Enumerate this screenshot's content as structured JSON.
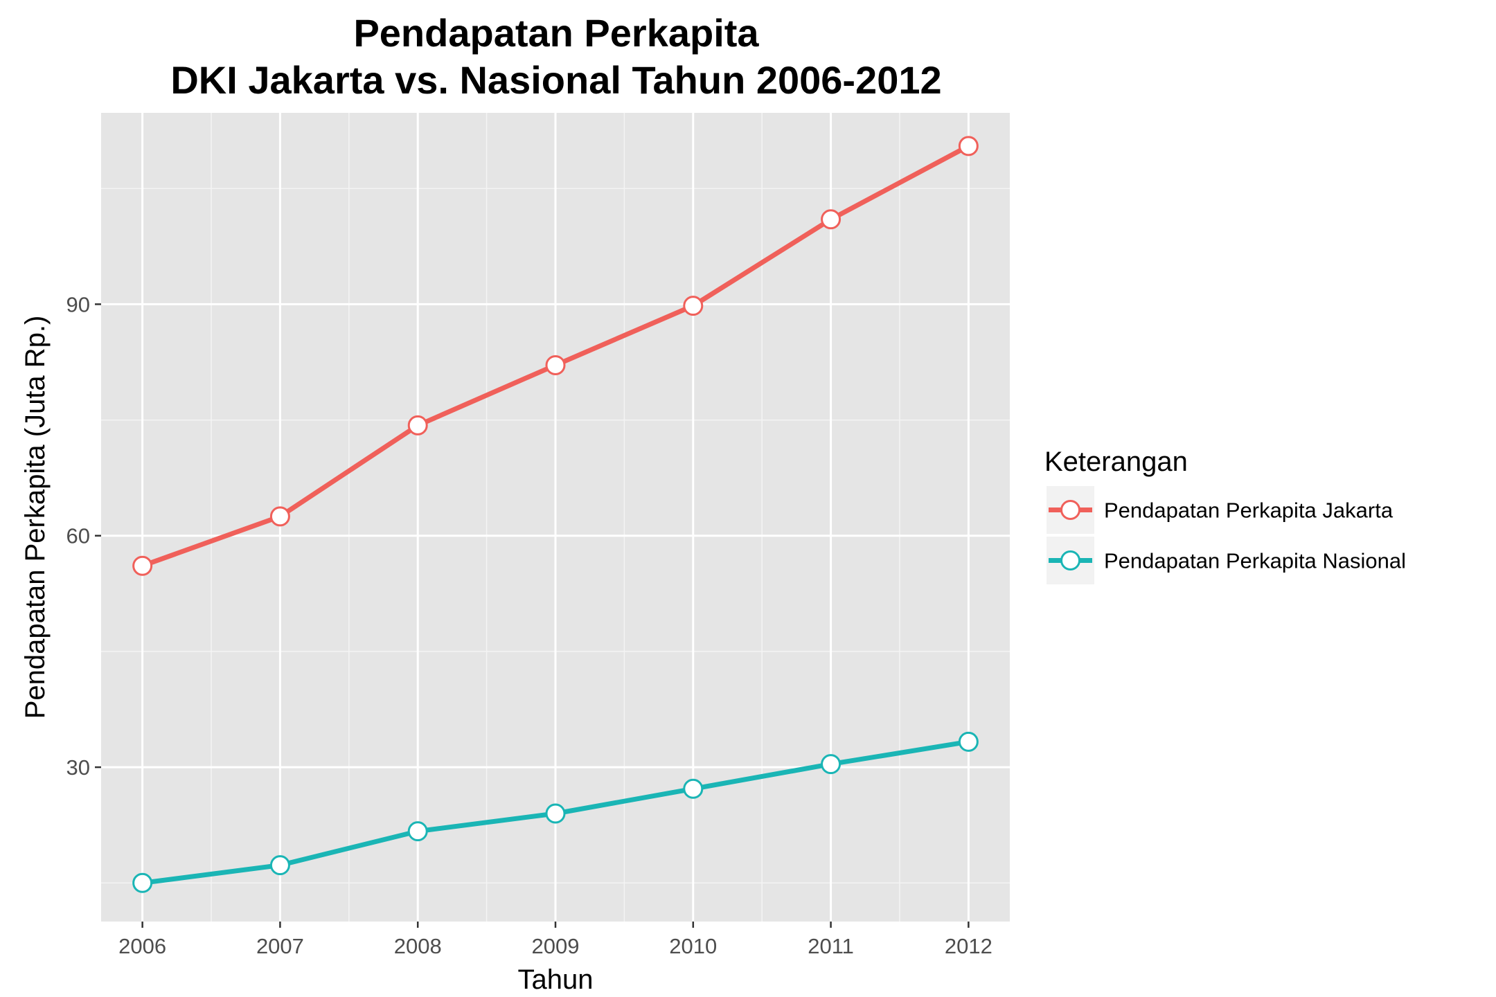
{
  "chart_data": {
    "type": "line",
    "title_line1": "Pendapatan Perkapita",
    "title_line2": "DKI Jakarta vs. Nasional Tahun 2006-2012",
    "xlabel": "Tahun",
    "ylabel": "Pendapatan Perkapita (Juta Rp.)",
    "x": [
      2006,
      2007,
      2008,
      2009,
      2010,
      2011,
      2012
    ],
    "xlim": [
      2005.7,
      2012.3
    ],
    "ylim": [
      10.0,
      114.8
    ],
    "yticks": [
      30,
      60,
      90
    ],
    "grid": true,
    "background": "#e5e5e5",
    "legend": {
      "title": "Keterangan",
      "position": "right"
    },
    "series": [
      {
        "name": "Pendapatan Perkapita Jakarta",
        "color": "#f0605a",
        "values": [
          56.1,
          62.5,
          74.3,
          82.1,
          89.8,
          101.0,
          110.5
        ]
      },
      {
        "name": "Pendapatan Perkapita Nasional",
        "color": "#1ab5b5",
        "values": [
          15.0,
          17.3,
          21.7,
          24.0,
          27.2,
          30.4,
          33.3
        ]
      }
    ]
  }
}
